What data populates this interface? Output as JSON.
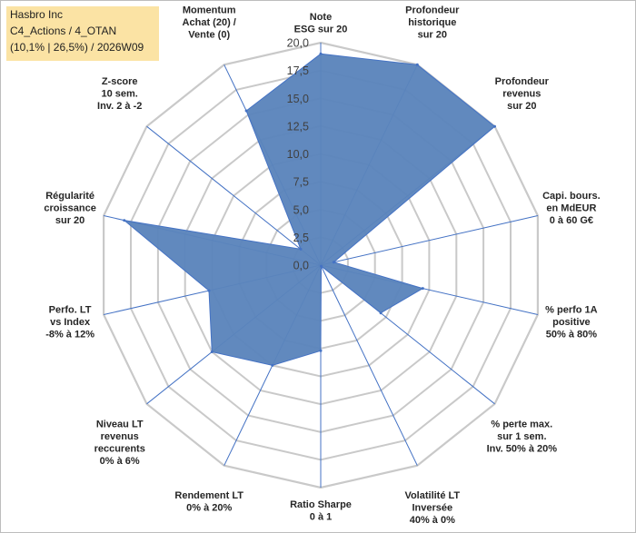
{
  "title_lines": [
    "Hasbro Inc",
    "C4_Actions / 4_OTAN",
    "(10,1% | 26,5%) / 2026W09"
  ],
  "colors": {
    "fill": "#5b84bb",
    "stroke": "#4472c4",
    "grid": "#c9c9c9",
    "spoke": "#4472c4",
    "title_bg": "#fbe3a4"
  },
  "chart_data": {
    "type": "radar",
    "grid": true,
    "legend": "none",
    "rmin": 0,
    "rmax": 20,
    "ticks": [
      "0,0",
      "2,5",
      "5,0",
      "7,5",
      "10,0",
      "12,5",
      "15,0",
      "17,5",
      "20,0"
    ],
    "axes": [
      {
        "label": [
          "Note",
          "ESG sur 20"
        ],
        "value": 19
      },
      {
        "label": [
          "Profondeur",
          "historique",
          "sur 20"
        ],
        "value": 20
      },
      {
        "label": [
          "Profondeur",
          "revenus",
          "sur 20"
        ],
        "value": 20
      },
      {
        "label": [
          "Capi. bours.",
          "en MdEUR",
          "0 à 60 G€"
        ],
        "value": 1.2
      },
      {
        "label": [
          "% perfo 1A",
          "positive",
          "50% à 80%"
        ],
        "value": 9.4
      },
      {
        "label": [
          "% perte max.",
          "sur 1 sem.",
          "Inv. 50% à 20%"
        ],
        "value": 6.9
      },
      {
        "label": [
          "Volatilité LT",
          "Inversée",
          "40% à 0%"
        ],
        "value": 0.1
      },
      {
        "label": [
          "Ratio Sharpe",
          "0 à 1"
        ],
        "value": 7.7
      },
      {
        "label": [
          "Rendement LT",
          "0% à 20%"
        ],
        "value": 10
      },
      {
        "label": [
          "Niveau LT",
          "revenus",
          "reccurents",
          "0% à 6%"
        ],
        "value": 12.5
      },
      {
        "label": [
          "Perfo. LT",
          "vs Index",
          "-8% à 12%"
        ],
        "value": 10.3
      },
      {
        "label": [
          "Régularité",
          "croissance",
          "sur 20"
        ],
        "value": 18.1
      },
      {
        "label": [
          "Z-score",
          "10 sem.",
          "Inv. 2 à -2"
        ],
        "value": 2.3
      },
      {
        "label": [
          "Momentum",
          "Achat (20) /",
          "Vente (0)"
        ],
        "value": 15.4
      }
    ]
  }
}
